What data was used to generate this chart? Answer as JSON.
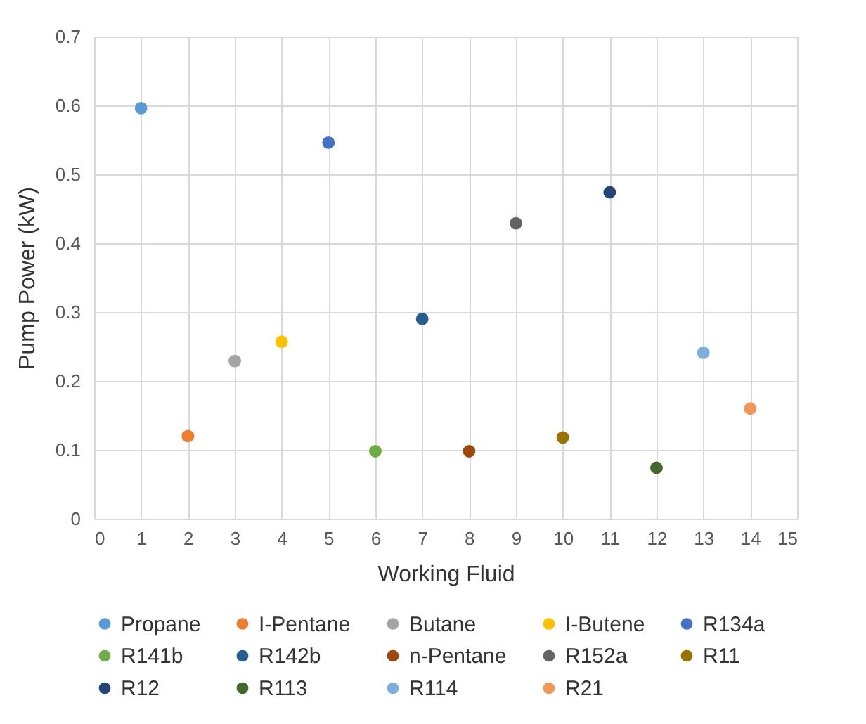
{
  "chart_data": {
    "type": "scatter",
    "xlabel": "Working Fluid",
    "ylabel": "Pump Power (kW)",
    "xlim": [
      0,
      15
    ],
    "xticks": [
      0,
      1,
      2,
      3,
      4,
      5,
      6,
      7,
      8,
      9,
      10,
      11,
      12,
      13,
      14,
      15
    ],
    "ylim": [
      0,
      0.7
    ],
    "yticks": [
      0,
      0.1,
      0.2,
      0.3,
      0.4,
      0.5,
      0.6,
      0.7
    ],
    "grid": true,
    "legend": "bottom",
    "marker": "circle",
    "series": [
      {
        "name": "Propane",
        "color": "#5b9bd5",
        "x": [
          1
        ],
        "values": [
          0.596
        ]
      },
      {
        "name": "I-Pentane",
        "color": "#ed7d31",
        "x": [
          2
        ],
        "values": [
          0.12
        ]
      },
      {
        "name": "Butane",
        "color": "#a5a5a5",
        "x": [
          3
        ],
        "values": [
          0.229
        ]
      },
      {
        "name": "I-Butene",
        "color": "#ffc000",
        "x": [
          4
        ],
        "values": [
          0.257
        ]
      },
      {
        "name": "R134a",
        "color": "#4472c4",
        "x": [
          5
        ],
        "values": [
          0.546
        ]
      },
      {
        "name": "R141b",
        "color": "#70ad47",
        "x": [
          6
        ],
        "values": [
          0.098
        ]
      },
      {
        "name": "R142b",
        "color": "#255e91",
        "x": [
          7
        ],
        "values": [
          0.29
        ]
      },
      {
        "name": "n-Pentane",
        "color": "#9e480e",
        "x": [
          8
        ],
        "values": [
          0.098
        ]
      },
      {
        "name": "R152a",
        "color": "#636363",
        "x": [
          9
        ],
        "values": [
          0.429
        ]
      },
      {
        "name": "R11",
        "color": "#997300",
        "x": [
          10
        ],
        "values": [
          0.118
        ]
      },
      {
        "name": "R12",
        "color": "#264478",
        "x": [
          11
        ],
        "values": [
          0.474
        ]
      },
      {
        "name": "R113",
        "color": "#43682b",
        "x": [
          12
        ],
        "values": [
          0.074
        ]
      },
      {
        "name": "R114",
        "color": "#7cafdd",
        "x": [
          13
        ],
        "values": [
          0.241
        ]
      },
      {
        "name": "R21",
        "color": "#f1975a",
        "x": [
          14
        ],
        "values": [
          0.16
        ]
      }
    ]
  }
}
